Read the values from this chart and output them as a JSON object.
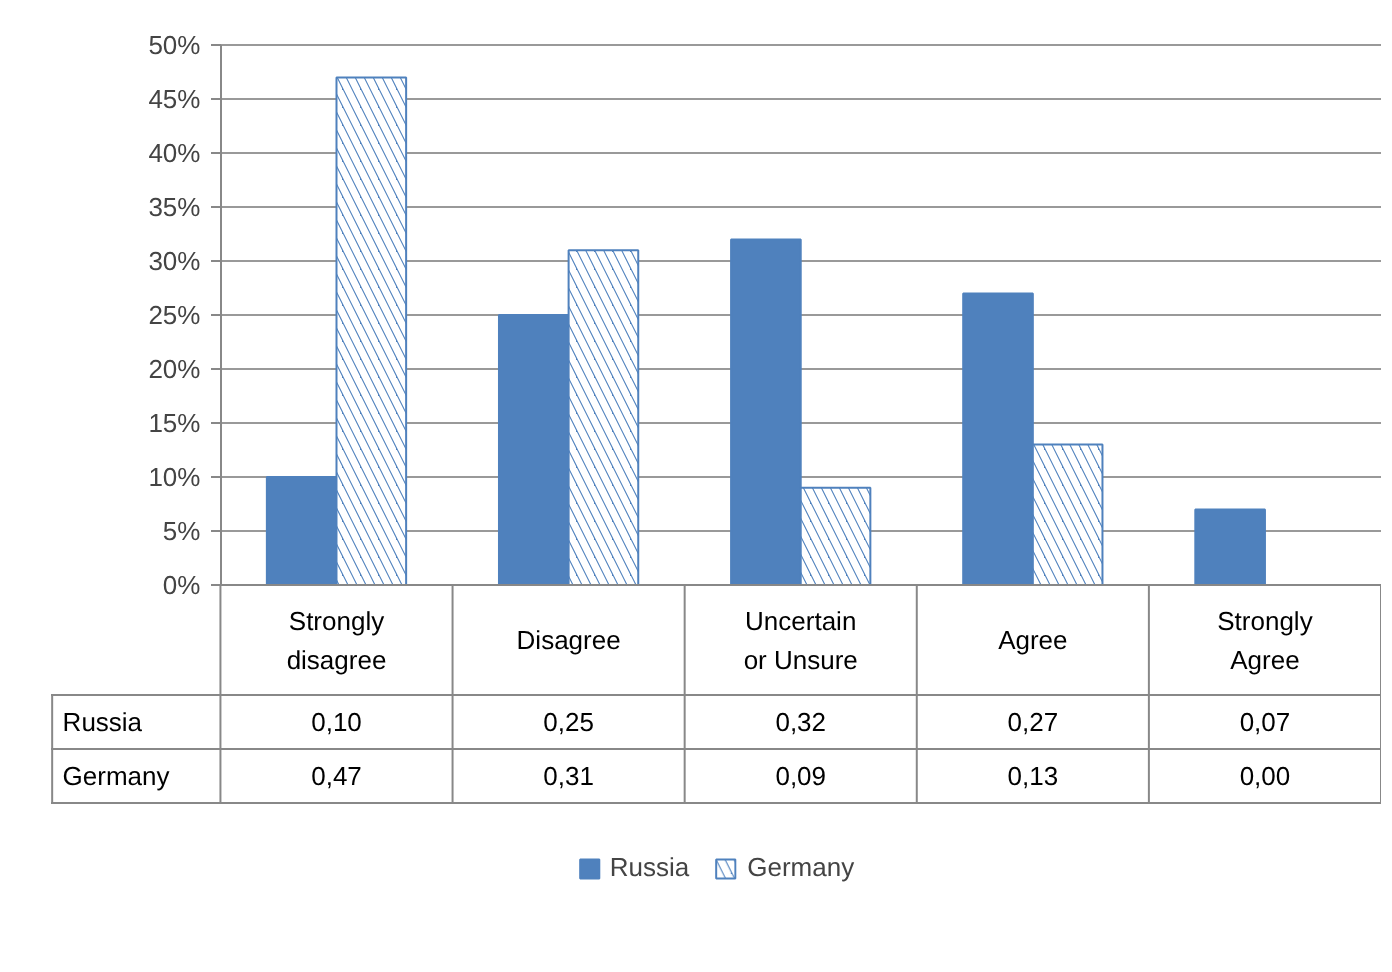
{
  "chart_data": {
    "type": "bar",
    "categories": [
      "Strongly disagree",
      "Disagree",
      "Uncertain or Unsure",
      "Agree",
      "Strongly Agree"
    ],
    "series": [
      {
        "name": "Russia",
        "color": "#4f81bd",
        "values": [
          0.1,
          0.25,
          0.32,
          0.27,
          0.07
        ],
        "value_labels": [
          "0,10",
          "0,25",
          "0,32",
          "0,27",
          "0,07"
        ]
      },
      {
        "name": "Germany",
        "color": "#4f81bd",
        "values": [
          0.47,
          0.31,
          0.09,
          0.13,
          0.0
        ],
        "value_labels": [
          "0,47",
          "0,31",
          "0,09",
          "0,13",
          "0,00"
        ]
      }
    ],
    "ylim": [
      0,
      0.5
    ],
    "yticks": [
      {
        "value": 0,
        "label": "0%"
      },
      {
        "value": 0.05,
        "label": "5%"
      },
      {
        "value": 0.1,
        "label": "10%"
      },
      {
        "value": 0.15,
        "label": "15%"
      },
      {
        "value": 0.2,
        "label": "20%"
      },
      {
        "value": 0.25,
        "label": "25%"
      },
      {
        "value": 0.3,
        "label": "30%"
      },
      {
        "value": 0.35,
        "label": "35%"
      },
      {
        "value": 0.4,
        "label": "40%"
      },
      {
        "value": 0.45,
        "label": "45%"
      },
      {
        "value": 0.5,
        "label": "50%"
      }
    ],
    "grid": "y",
    "legend": "bottom"
  }
}
